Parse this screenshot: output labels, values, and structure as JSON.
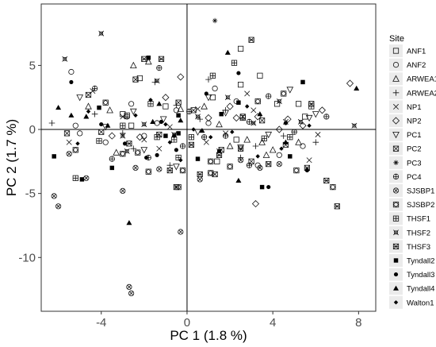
{
  "chart_data": {
    "type": "scatter",
    "title": "",
    "xlabel": "PC 1 (1.8 %)",
    "ylabel": "PC 2 (1.7 %)",
    "xlim": [
      -6.8,
      8.8
    ],
    "ylim": [
      -14.2,
      9.8
    ],
    "xticks": [
      -4,
      0,
      4,
      8
    ],
    "yticks": [
      -10,
      -5,
      0,
      5
    ],
    "xtick_labels": [
      "-4",
      "0",
      "4",
      "8"
    ],
    "ytick_labels": [
      "-10",
      "-5",
      "0",
      "5"
    ],
    "reference_lines": {
      "x": 0,
      "y": 0
    },
    "grid": false,
    "legend": {
      "title": "Site",
      "position": "right"
    },
    "series": [
      {
        "name": "ANF1",
        "marker": "square-open",
        "points": [
          [
            -3.0,
            1.2
          ],
          [
            -2.2,
            4.0
          ],
          [
            -1.0,
            1.8
          ],
          [
            1.2,
            2.5
          ],
          [
            2.3,
            -0.8
          ],
          [
            2.5,
            6.3
          ],
          [
            3.4,
            4.2
          ],
          [
            4.2,
            2.0
          ],
          [
            5.2,
            2.0
          ],
          [
            -2.6,
            0.3
          ],
          [
            1.4,
            -2.5
          ],
          [
            2.5,
            3.5
          ],
          [
            5.5,
            1.0
          ],
          [
            -2.8,
            1.1
          ]
        ]
      },
      {
        "name": "ANF2",
        "marker": "circle-open",
        "points": [
          [
            -5.4,
            4.5
          ],
          [
            -5.2,
            0.3
          ],
          [
            -3.8,
            -1.0
          ],
          [
            -2.6,
            2.0
          ],
          [
            -1.4,
            0.5
          ],
          [
            1.0,
            0.5
          ],
          [
            2.3,
            2.2
          ],
          [
            3.3,
            -2.8
          ],
          [
            5.4,
            -1.3
          ],
          [
            1.3,
            3.2
          ],
          [
            -2.0,
            -0.5
          ],
          [
            -5.0,
            -0.3
          ],
          [
            4.3,
            -2.0
          ],
          [
            -0.5,
            1.5
          ]
        ]
      },
      {
        "name": "ARWEA1",
        "marker": "triangle-up-open",
        "points": [
          [
            -4.6,
            1.8
          ],
          [
            -3.6,
            1.5
          ],
          [
            -1.8,
            5.3
          ],
          [
            -0.3,
            1.6
          ],
          [
            0.8,
            1.8
          ],
          [
            2.0,
            -1.3
          ],
          [
            2.8,
            -0.8
          ],
          [
            3.5,
            -1.0
          ],
          [
            4.0,
            -1.6
          ],
          [
            5.2,
            -1.0
          ],
          [
            1.5,
            0.4
          ],
          [
            -3.3,
            -1.8
          ],
          [
            3.7,
            -2.0
          ],
          [
            -2.5,
            5.0
          ]
        ]
      },
      {
        "name": "ARWEA2",
        "marker": "plus",
        "points": [
          [
            -6.3,
            0.5
          ],
          [
            -4.3,
            1.2
          ],
          [
            -2.5,
            -1.5
          ],
          [
            -0.5,
            1.9
          ],
          [
            0.6,
            0.8
          ],
          [
            1.8,
            1.5
          ],
          [
            3.2,
            -1.3
          ],
          [
            4.5,
            -0.5
          ],
          [
            6.0,
            -1.0
          ],
          [
            -1.5,
            3.7
          ],
          [
            2.5,
            -2.2
          ],
          [
            -3.0,
            -0.3
          ],
          [
            1.0,
            3.9
          ],
          [
            -0.8,
            -2.8
          ]
        ]
      },
      {
        "name": "NP1",
        "marker": "cross",
        "points": [
          [
            -5.5,
            -1.0
          ],
          [
            -4.4,
            3.0
          ],
          [
            -3.0,
            1.0
          ],
          [
            -0.8,
            0.2
          ],
          [
            0.5,
            1.6
          ],
          [
            1.8,
            -0.3
          ],
          [
            3.1,
            1.5
          ],
          [
            4.6,
            0.6
          ],
          [
            5.7,
            -2.4
          ],
          [
            6.1,
            -0.4
          ],
          [
            -2.0,
            -0.8
          ],
          [
            2.8,
            2.8
          ],
          [
            -1.3,
            -1.5
          ],
          [
            0.9,
            -1.0
          ]
        ]
      },
      {
        "name": "NP2",
        "marker": "diamond-open",
        "points": [
          [
            -3.5,
            -0.5
          ],
          [
            -2.2,
            -0.6
          ],
          [
            -0.3,
            4.1
          ],
          [
            1.0,
            0.9
          ],
          [
            2.3,
            0.9
          ],
          [
            3.3,
            1.0
          ],
          [
            4.7,
            0.8
          ],
          [
            5.4,
            0.3
          ],
          [
            6.3,
            1.5
          ],
          [
            7.6,
            3.6
          ],
          [
            3.2,
            -5.8
          ],
          [
            -1.0,
            2.5
          ],
          [
            4.3,
            0.0
          ],
          [
            2.0,
            1.8
          ]
        ]
      },
      {
        "name": "PC1",
        "marker": "triangle-down-open",
        "points": [
          [
            -5.0,
            2.5
          ],
          [
            -3.8,
            0.2
          ],
          [
            -2.5,
            1.4
          ],
          [
            -1.1,
            0.8
          ],
          [
            -0.5,
            -2.9
          ],
          [
            0.5,
            -0.2
          ],
          [
            1.8,
            1.3
          ],
          [
            2.5,
            -1.4
          ],
          [
            3.8,
            -0.4
          ],
          [
            4.8,
            3.1
          ],
          [
            6.0,
            1.2
          ],
          [
            -2.0,
            -1.6
          ],
          [
            1.0,
            2.5
          ],
          [
            5.7,
            0.9
          ]
        ]
      },
      {
        "name": "PC2",
        "marker": "square-cross",
        "points": [
          [
            -5.6,
            -0.3
          ],
          [
            -4.0,
            -0.2
          ],
          [
            -2.4,
            3.9
          ],
          [
            -1.3,
            -0.4
          ],
          [
            0.3,
            1.5
          ],
          [
            1.6,
            -1.6
          ],
          [
            2.6,
            1.0
          ],
          [
            3.5,
            0.7
          ],
          [
            4.6,
            -1.2
          ],
          [
            5.8,
            2.0
          ],
          [
            -4.6,
            2.7
          ],
          [
            3.0,
            -2.5
          ],
          [
            -0.4,
            2.1
          ],
          [
            1.3,
            -3.5
          ]
        ]
      },
      {
        "name": "PC3",
        "marker": "asterisk",
        "points": [
          [
            1.3,
            8.5
          ]
        ]
      },
      {
        "name": "PC4",
        "marker": "circle-plus",
        "points": [
          [
            -4.3,
            3.2
          ],
          [
            -2.8,
            1.0
          ],
          [
            -1.3,
            4.8
          ],
          [
            -0.2,
            -1.3
          ],
          [
            0.8,
            -0.6
          ],
          [
            1.8,
            -0.5
          ],
          [
            2.9,
            0.6
          ],
          [
            3.8,
            2.6
          ],
          [
            5.0,
            -0.2
          ],
          [
            6.5,
            1.0
          ],
          [
            -3.5,
            -2.3
          ],
          [
            2.9,
            -2.8
          ],
          [
            0.1,
            1.4
          ],
          [
            -1.8,
            -2.2
          ]
        ]
      },
      {
        "name": "SJSBP1",
        "marker": "circle-cross",
        "points": [
          [
            -6.2,
            -5.2
          ],
          [
            -6.0,
            -6.0
          ],
          [
            -5.5,
            -1.9
          ],
          [
            -4.7,
            -3.8
          ],
          [
            -3.0,
            -4.8
          ],
          [
            -2.7,
            -12.3
          ],
          [
            -2.6,
            -12.8
          ],
          [
            -1.3,
            -3.1
          ],
          [
            -0.3,
            -8.0
          ],
          [
            0.6,
            -3.9
          ],
          [
            2.5,
            -2.4
          ],
          [
            3.4,
            -3.0
          ],
          [
            4.3,
            -2.7
          ],
          [
            -2.4,
            -3.0
          ]
        ]
      },
      {
        "name": "SJSBP2",
        "marker": "square-diamond",
        "points": [
          [
            -5.2,
            -1.6
          ],
          [
            -3.8,
            2.1
          ],
          [
            -2.3,
            -1.8
          ],
          [
            -1.8,
            -3.3
          ],
          [
            -0.4,
            -4.5
          ],
          [
            -0.2,
            -3.2
          ],
          [
            1.1,
            -2.5
          ],
          [
            2.0,
            -2.9
          ],
          [
            3.3,
            2.2
          ],
          [
            4.5,
            2.8
          ],
          [
            5.1,
            -3.2
          ],
          [
            6.8,
            -4.5
          ],
          [
            -3.0,
            -1.9
          ],
          [
            1.1,
            -3.4
          ]
        ]
      },
      {
        "name": "THSF1",
        "marker": "square-plus",
        "points": [
          [
            -5.2,
            -3.8
          ],
          [
            -4.1,
            -0.9
          ],
          [
            -3.0,
            0.3
          ],
          [
            -1.7,
            2.0
          ],
          [
            -0.6,
            -0.8
          ],
          [
            0.2,
            -0.6
          ],
          [
            1.2,
            4.2
          ],
          [
            2.2,
            5.2
          ],
          [
            2.6,
            0.9
          ],
          [
            3.6,
            -0.7
          ],
          [
            4.8,
            -0.6
          ],
          [
            5.8,
            1.8
          ],
          [
            -0.4,
            -2.2
          ],
          [
            -1.4,
            -0.6
          ]
        ]
      },
      {
        "name": "THSF2",
        "marker": "square-x",
        "points": [
          [
            -5.7,
            5.5
          ],
          [
            -4.0,
            7.5
          ],
          [
            -3.0,
            -0.5
          ],
          [
            -2.0,
            0.4
          ],
          [
            -0.6,
            -0.4
          ],
          [
            0.5,
            1.0
          ],
          [
            1.9,
            2.5
          ],
          [
            3.1,
            0.5
          ],
          [
            4.3,
            2.2
          ],
          [
            5.3,
            0.6
          ],
          [
            7.8,
            0.3
          ],
          [
            -1.4,
            3.8
          ],
          [
            -2.8,
            -1.7
          ],
          [
            1.5,
            -1.7
          ]
        ]
      },
      {
        "name": "THSF3",
        "marker": "square-star",
        "points": [
          [
            -2.7,
            -1.1
          ],
          [
            -1.2,
            5.5
          ],
          [
            -0.5,
            -4.5
          ],
          [
            -0.8,
            -3.2
          ],
          [
            0.2,
            -1.2
          ],
          [
            0.6,
            -3.5
          ],
          [
            1.5,
            -2.0
          ],
          [
            2.5,
            -1.5
          ],
          [
            3.0,
            7.0
          ],
          [
            3.8,
            -2.7
          ],
          [
            5.6,
            -3.0
          ],
          [
            7.0,
            -6.0
          ],
          [
            -2.0,
            5.5
          ],
          [
            6.5,
            -4.0
          ]
        ]
      },
      {
        "name": "Tyndall2",
        "marker": "square-filled",
        "points": [
          [
            -6.2,
            -2.1
          ],
          [
            -4.9,
            -3.9
          ],
          [
            -4.1,
            1.7
          ],
          [
            -3.5,
            -3.0
          ],
          [
            -1.8,
            5.6
          ],
          [
            -0.4,
            -0.3
          ],
          [
            -0.4,
            1.1
          ],
          [
            0.5,
            -2.3
          ],
          [
            2.4,
            2.1
          ],
          [
            3.5,
            -4.5
          ],
          [
            5.4,
            3.7
          ],
          [
            -1.0,
            -0.5
          ],
          [
            1.6,
            1.2
          ],
          [
            4.8,
            -2.1
          ]
        ]
      },
      {
        "name": "Tyndall3",
        "marker": "circle-filled",
        "points": [
          [
            -5.4,
            3.7
          ],
          [
            -4.0,
            0.4
          ],
          [
            -2.9,
            -1.1
          ],
          [
            -1.9,
            -2.2
          ],
          [
            -1.4,
            -2.0
          ],
          [
            -0.6,
            -0.5
          ],
          [
            -0.5,
            -1.6
          ],
          [
            0.9,
            2.8
          ],
          [
            2.4,
            4.4
          ],
          [
            3.8,
            -4.5
          ],
          [
            5.6,
            -3.2
          ],
          [
            -1.2,
            0.6
          ],
          [
            1.5,
            -1.7
          ],
          [
            4.6,
            0.5
          ]
        ]
      },
      {
        "name": "Tyndall4",
        "marker": "triangle-up-filled",
        "points": [
          [
            -6.0,
            1.7
          ],
          [
            -5.4,
            1.1
          ],
          [
            -4.7,
            1.0
          ],
          [
            -3.7,
            0.3
          ],
          [
            -2.7,
            -7.3
          ],
          [
            -1.6,
            0.6
          ],
          [
            -1.3,
            2.0
          ],
          [
            -0.3,
            0.7
          ],
          [
            0.7,
            -0.1
          ],
          [
            1.9,
            6.0
          ],
          [
            2.4,
            -4.0
          ],
          [
            3.4,
            1.2
          ],
          [
            4.6,
            -1.0
          ],
          [
            7.9,
            3.2
          ]
        ]
      },
      {
        "name": "Walton1",
        "marker": "diamond-filled",
        "points": [
          [
            -5.1,
            -1.1
          ],
          [
            -4.6,
            1.4
          ],
          [
            -2.4,
            1.1
          ],
          [
            -1.7,
            2.3
          ],
          [
            -1.0,
            0.4
          ],
          [
            -0.8,
            -1.0
          ],
          [
            0.3,
            0.0
          ],
          [
            1.1,
            -0.6
          ],
          [
            2.1,
            -0.2
          ],
          [
            3.3,
            -2.1
          ],
          [
            4.4,
            -1.5
          ],
          [
            5.7,
            0.3
          ],
          [
            -0.3,
            -2.4
          ],
          [
            2.8,
            1.8
          ]
        ]
      }
    ]
  }
}
